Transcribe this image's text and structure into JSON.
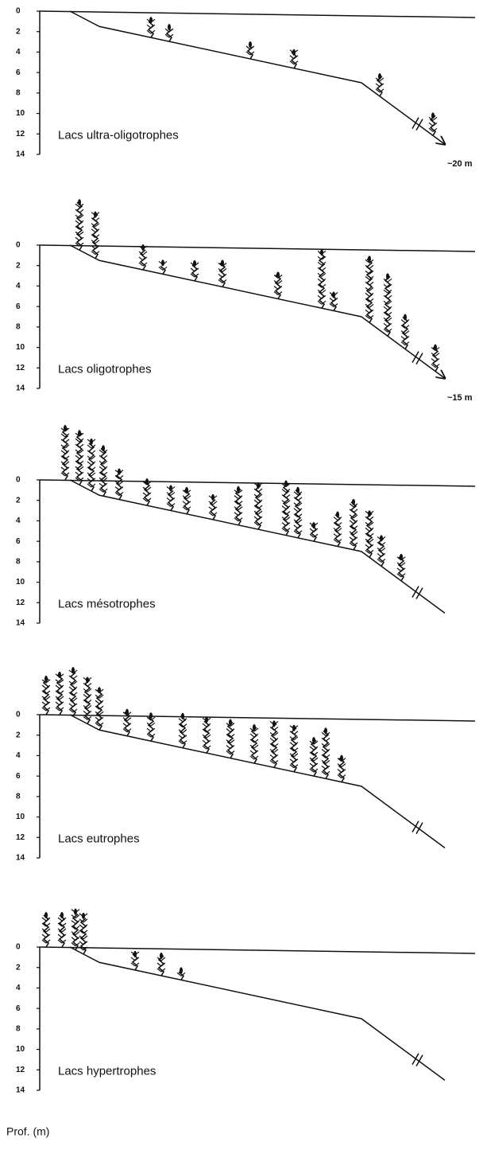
{
  "panels": [
    {
      "label": "Lacs ultra-oligotrophes",
      "depth_note": "~20 m"
    },
    {
      "label": "Lacs oligotrophes",
      "depth_note": "~15 m"
    },
    {
      "label": "Lacs mésotrophes"
    },
    {
      "label": "Lacs eutrophes"
    },
    {
      "label": "Lacs hypertrophes"
    }
  ],
  "depth_ticks": [
    0,
    2,
    4,
    6,
    8,
    10,
    12,
    14
  ],
  "axis_label": "Prof. (m)"
}
